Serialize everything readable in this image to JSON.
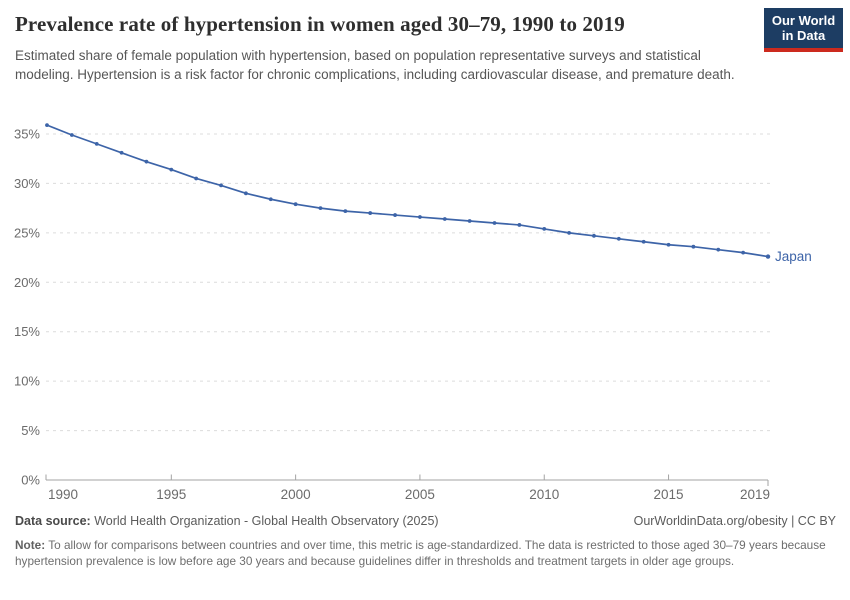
{
  "header": {
    "logo": {
      "line1": "Our World",
      "line2": "in Data",
      "bg_color": "#1d3d63",
      "accent_color": "#cc2a1e"
    }
  },
  "chart_data": {
    "type": "line",
    "title": "Prevalence rate of hypertension in women aged 30–79, 1990 to 2019",
    "subtitle": "Estimated share of female population with hypertension, based on population representative surveys and statistical modeling. Hypertension is a risk factor for chronic complications, including cardiovascular disease, and premature death.",
    "x": [
      1990,
      1991,
      1992,
      1993,
      1994,
      1995,
      1996,
      1997,
      1998,
      1999,
      2000,
      2001,
      2002,
      2003,
      2004,
      2005,
      2006,
      2007,
      2008,
      2009,
      2010,
      2011,
      2012,
      2013,
      2014,
      2015,
      2016,
      2017,
      2018,
      2019
    ],
    "series": [
      {
        "name": "Japan",
        "color": "#3d64a8",
        "values": [
          35.9,
          34.9,
          34.0,
          33.1,
          32.2,
          31.4,
          30.5,
          29.8,
          29.0,
          28.4,
          27.9,
          27.5,
          27.2,
          27.0,
          26.8,
          26.6,
          26.4,
          26.2,
          26.0,
          25.8,
          25.4,
          25.0,
          24.7,
          24.4,
          24.1,
          23.8,
          23.6,
          23.3,
          23.0,
          22.6
        ]
      }
    ],
    "xlabel": "",
    "ylabel": "",
    "ylim": [
      0,
      35
    ],
    "ytick_values": [
      0,
      5,
      10,
      15,
      20,
      25,
      30,
      35
    ],
    "ytick_labels": [
      "0%",
      "5%",
      "10%",
      "15%",
      "20%",
      "25%",
      "30%",
      "35%"
    ],
    "xtick_values": [
      1990,
      1995,
      2000,
      2005,
      2010,
      2015,
      2019
    ],
    "xtick_labels": [
      "1990",
      "1995",
      "2000",
      "2005",
      "2010",
      "2015",
      "2019"
    ],
    "grid": "horizontal-dashed",
    "legend_position": "end-of-line",
    "gridline_color": "#dcdcdc",
    "axis_color": "#a3a3a3",
    "tick_label_color": "#6b6b6b"
  },
  "footer": {
    "datasource_label": "Data source:",
    "datasource_text": " World Health Organization - Global Health Observatory (2025)",
    "link_text": "OurWorldinData.org/obesity | CC BY",
    "note_label": "Note:",
    "note_text": " To allow for comparisons between countries and over time, this metric is age-standardized. The data is restricted to those aged 30–79 years because hypertension prevalence is low before age 30 years and because guidelines differ in thresholds and treatment targets in older age groups."
  }
}
